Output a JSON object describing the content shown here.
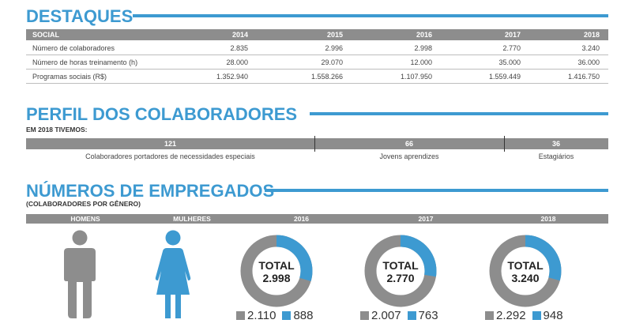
{
  "destaques": {
    "title": "DESTAQUES",
    "header": [
      "SOCIAL",
      "2014",
      "2015",
      "2016",
      "2017",
      "2018"
    ],
    "rows": [
      {
        "label": "Número de colaboradores",
        "values": [
          "2.835",
          "2.996",
          "2.998",
          "2.770",
          "3.240"
        ]
      },
      {
        "label": "Número de horas treinamento (h)",
        "values": [
          "28.000",
          "29.070",
          "12.000",
          "35.000",
          "36.000"
        ]
      },
      {
        "label": "Programas sociais (R$)",
        "values": [
          "1.352.940",
          "1.558.266",
          "1.107.950",
          "1.559.449",
          "1.416.750"
        ]
      }
    ]
  },
  "perfil": {
    "title": "PERFIL DOS COLABORADORES",
    "subtitle": "EM 2018 TIVEMOS:",
    "items": [
      {
        "value": "121",
        "caption": "Colaboradores portadores de necessidades especiais"
      },
      {
        "value": "66",
        "caption": "Jovens aprendizes"
      },
      {
        "value": "36",
        "caption": "Estagiários"
      }
    ]
  },
  "empregados": {
    "title": "NÚMEROS DE EMPREGADOS",
    "subtitle": "(COLABORADORES POR GÊNERO)",
    "men_label": "HOMENS",
    "women_label": "MULHERES",
    "colors": {
      "men": "#8d8d8d",
      "women": "#3d9ad1"
    },
    "years": [
      {
        "year": "2016",
        "total_label": "TOTAL",
        "total": "2.998",
        "men": "2.110",
        "women": "888",
        "women_fraction": 0.296
      },
      {
        "year": "2017",
        "total_label": "TOTAL",
        "total": "2.770",
        "men": "2.007",
        "women": "763",
        "women_fraction": 0.275
      },
      {
        "year": "2018",
        "total_label": "TOTAL",
        "total": "3.240",
        "men": "2.292",
        "women": "948",
        "women_fraction": 0.293
      }
    ]
  }
}
